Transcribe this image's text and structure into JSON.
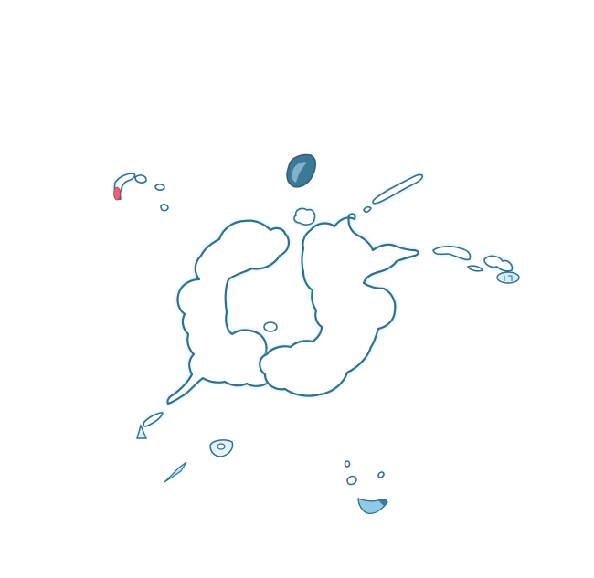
{
  "scene": {
    "type": "smoke-burst-sprite",
    "colors": {
      "background": "#ffffff",
      "outline": "#2e6f8e",
      "glow": "#bfe6f5",
      "fill": "#ffffff",
      "dark_chunk": "#3d7896",
      "light_chunk": "#8fcbe6",
      "ember": "#e8607a"
    }
  }
}
